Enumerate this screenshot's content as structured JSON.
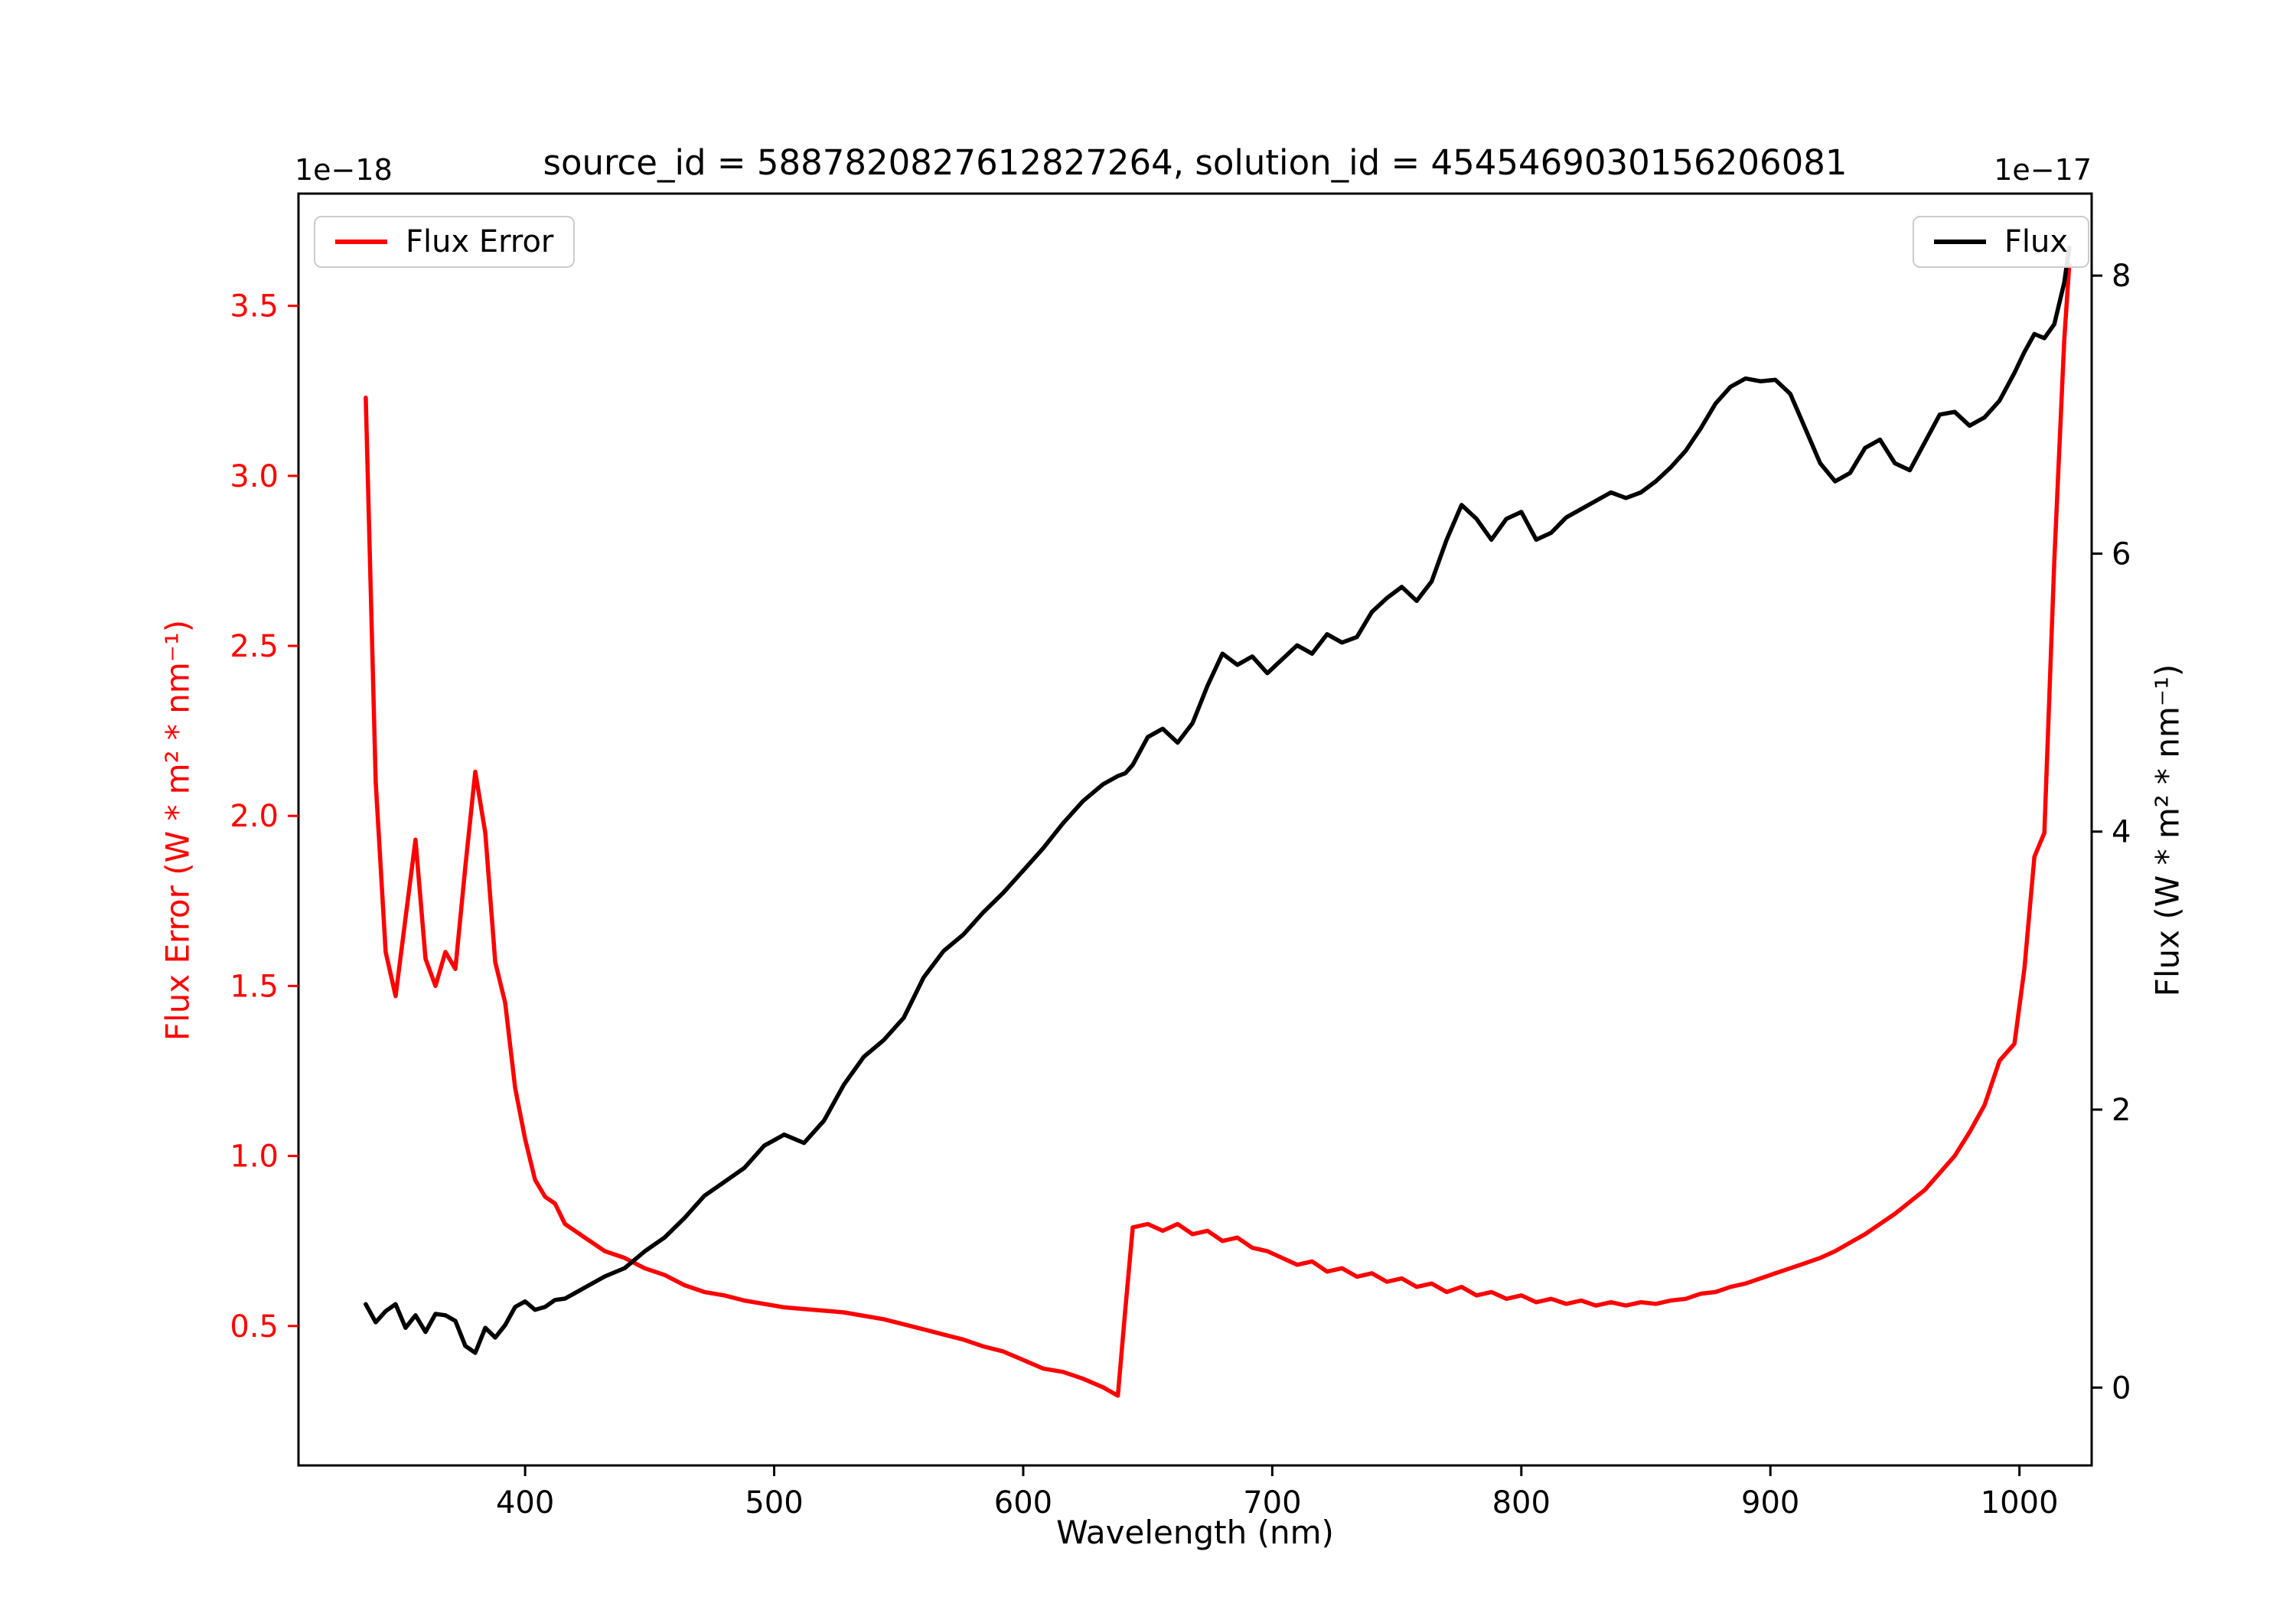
{
  "figure": {
    "background": "#ffffff"
  },
  "chart_data": {
    "type": "line",
    "title": "source_id = 5887820827612827264, solution_id = 4545469030156206081",
    "xlabel": "Wavelength (nm)",
    "grid": false,
    "xlim": [
      309,
      1029
    ],
    "x_ticks": [
      400,
      500,
      600,
      700,
      800,
      900,
      1000
    ],
    "x_tick_labels": [
      "400",
      "500",
      "600",
      "700",
      "800",
      "900",
      "1000"
    ],
    "left_axis": {
      "label": "Flux Error (W * m² * nm⁻¹)",
      "offset_text": "1e−18",
      "color": "#ff0000",
      "ylim": [
        0.09,
        3.83
      ],
      "ticks": [
        0.5,
        1.0,
        1.5,
        2.0,
        2.5,
        3.0,
        3.5
      ],
      "tick_labels": [
        "0.5",
        "1.0",
        "1.5",
        "2.0",
        "2.5",
        "3.0",
        "3.5"
      ]
    },
    "right_axis": {
      "label": "Flux (W * m² * nm⁻¹)",
      "offset_text": "1e−17",
      "color": "#000000",
      "ylim": [
        -0.56,
        8.59
      ],
      "ticks": [
        0,
        2,
        4,
        6,
        8
      ],
      "tick_labels": [
        "0",
        "2",
        "4",
        "6",
        "8"
      ]
    },
    "legend": [
      {
        "label": "Flux Error",
        "loc": "upper left"
      },
      {
        "label": "Flux",
        "loc": "upper right"
      }
    ],
    "x": [
      336,
      340,
      344,
      348,
      352,
      356,
      360,
      364,
      368,
      372,
      376,
      380,
      384,
      388,
      392,
      396,
      400,
      404,
      408,
      412,
      416,
      420,
      424,
      432,
      440,
      448,
      456,
      464,
      472,
      480,
      488,
      496,
      504,
      512,
      520,
      528,
      536,
      544,
      552,
      560,
      568,
      576,
      584,
      592,
      600,
      608,
      616,
      624,
      632,
      638,
      641,
      644,
      650,
      656,
      662,
      668,
      674,
      680,
      686,
      692,
      698,
      704,
      710,
      716,
      722,
      728,
      734,
      740,
      746,
      752,
      758,
      764,
      770,
      776,
      782,
      788,
      794,
      800,
      806,
      812,
      818,
      824,
      830,
      836,
      842,
      848,
      854,
      860,
      866,
      872,
      878,
      884,
      890,
      896,
      902,
      908,
      914,
      920,
      926,
      932,
      938,
      944,
      950,
      956,
      962,
      968,
      974,
      980,
      986,
      992,
      998,
      1002,
      1006,
      1010,
      1014,
      1018,
      1020
    ],
    "series": [
      {
        "name": "Flux Error",
        "axis": "left",
        "color": "#ff0000",
        "unit_scale": "1e-18",
        "values": [
          3.23,
          2.1,
          1.6,
          1.47,
          1.7,
          1.93,
          1.58,
          1.5,
          1.6,
          1.55,
          1.85,
          2.13,
          1.95,
          1.57,
          1.45,
          1.2,
          1.05,
          0.93,
          0.88,
          0.86,
          0.8,
          0.78,
          0.76,
          0.72,
          0.7,
          0.67,
          0.65,
          0.62,
          0.6,
          0.59,
          0.575,
          0.565,
          0.555,
          0.55,
          0.545,
          0.54,
          0.53,
          0.52,
          0.505,
          0.49,
          0.475,
          0.46,
          0.44,
          0.425,
          0.4,
          0.375,
          0.365,
          0.345,
          0.32,
          0.295,
          0.55,
          0.79,
          0.8,
          0.78,
          0.8,
          0.77,
          0.78,
          0.75,
          0.76,
          0.73,
          0.72,
          0.7,
          0.68,
          0.69,
          0.66,
          0.67,
          0.645,
          0.655,
          0.63,
          0.64,
          0.615,
          0.625,
          0.6,
          0.615,
          0.59,
          0.6,
          0.58,
          0.59,
          0.57,
          0.58,
          0.565,
          0.575,
          0.56,
          0.57,
          0.56,
          0.57,
          0.565,
          0.575,
          0.58,
          0.595,
          0.6,
          0.615,
          0.625,
          0.64,
          0.655,
          0.67,
          0.685,
          0.7,
          0.72,
          0.745,
          0.77,
          0.8,
          0.83,
          0.865,
          0.9,
          0.95,
          1.0,
          1.07,
          1.15,
          1.28,
          1.33,
          1.55,
          1.88,
          1.95,
          2.75,
          3.4,
          3.62
        ]
      },
      {
        "name": "Flux",
        "axis": "right",
        "color": "#000000",
        "unit_scale": "1e-17",
        "values": [
          0.6,
          0.47,
          0.55,
          0.6,
          0.43,
          0.52,
          0.4,
          0.53,
          0.52,
          0.48,
          0.3,
          0.25,
          0.43,
          0.36,
          0.45,
          0.58,
          0.62,
          0.56,
          0.58,
          0.63,
          0.64,
          0.68,
          0.72,
          0.8,
          0.86,
          0.98,
          1.08,
          1.22,
          1.38,
          1.48,
          1.58,
          1.74,
          1.82,
          1.76,
          1.92,
          2.18,
          2.38,
          2.5,
          2.66,
          2.95,
          3.14,
          3.26,
          3.42,
          3.56,
          3.72,
          3.88,
          4.06,
          4.22,
          4.34,
          4.4,
          4.42,
          4.48,
          4.68,
          4.74,
          4.64,
          4.78,
          5.05,
          5.28,
          5.2,
          5.26,
          5.14,
          5.24,
          5.34,
          5.28,
          5.42,
          5.36,
          5.4,
          5.58,
          5.68,
          5.76,
          5.66,
          5.8,
          6.1,
          6.35,
          6.25,
          6.1,
          6.25,
          6.3,
          6.1,
          6.15,
          6.26,
          6.32,
          6.38,
          6.44,
          6.4,
          6.44,
          6.52,
          6.62,
          6.74,
          6.9,
          7.08,
          7.2,
          7.26,
          7.24,
          7.25,
          7.15,
          6.9,
          6.65,
          6.52,
          6.58,
          6.76,
          6.82,
          6.65,
          6.6,
          6.8,
          7.0,
          7.02,
          6.92,
          6.98,
          7.1,
          7.3,
          7.45,
          7.58,
          7.55,
          7.65,
          7.95,
          8.2
        ]
      }
    ]
  }
}
